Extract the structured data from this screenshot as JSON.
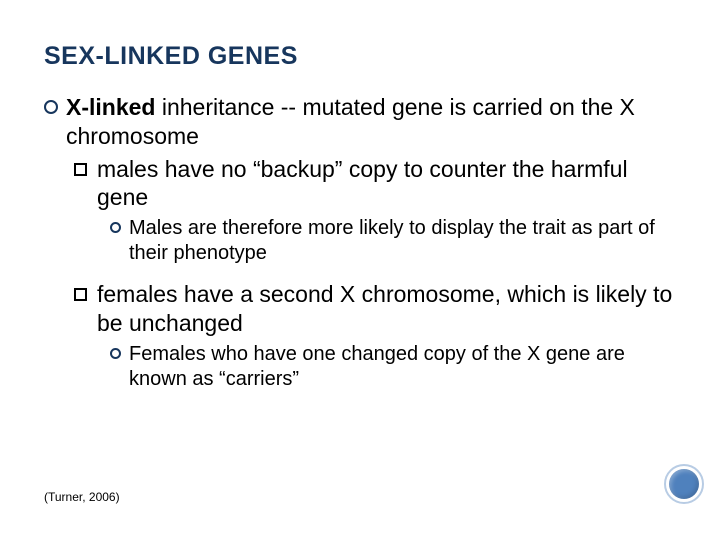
{
  "title": "SEX-LINKED GENES",
  "l1": {
    "bold": "X-linked",
    "rest": " inheritance -- mutated gene is carried on the X chromosome"
  },
  "l2a": "males have no “backup” copy to counter the harmful gene",
  "l3a": "Males are therefore more likely to display the trait as part of their phenotype",
  "l2b": "females have a second X chromosome, which is likely to be unchanged",
  "l3b": "Females who have one changed copy of the X gene are known as “carriers”",
  "citation": "(Turner, 2006)",
  "colors": {
    "title": "#17365d",
    "accent_circle": "#4f81bd",
    "accent_ring": "#b8cce4"
  }
}
